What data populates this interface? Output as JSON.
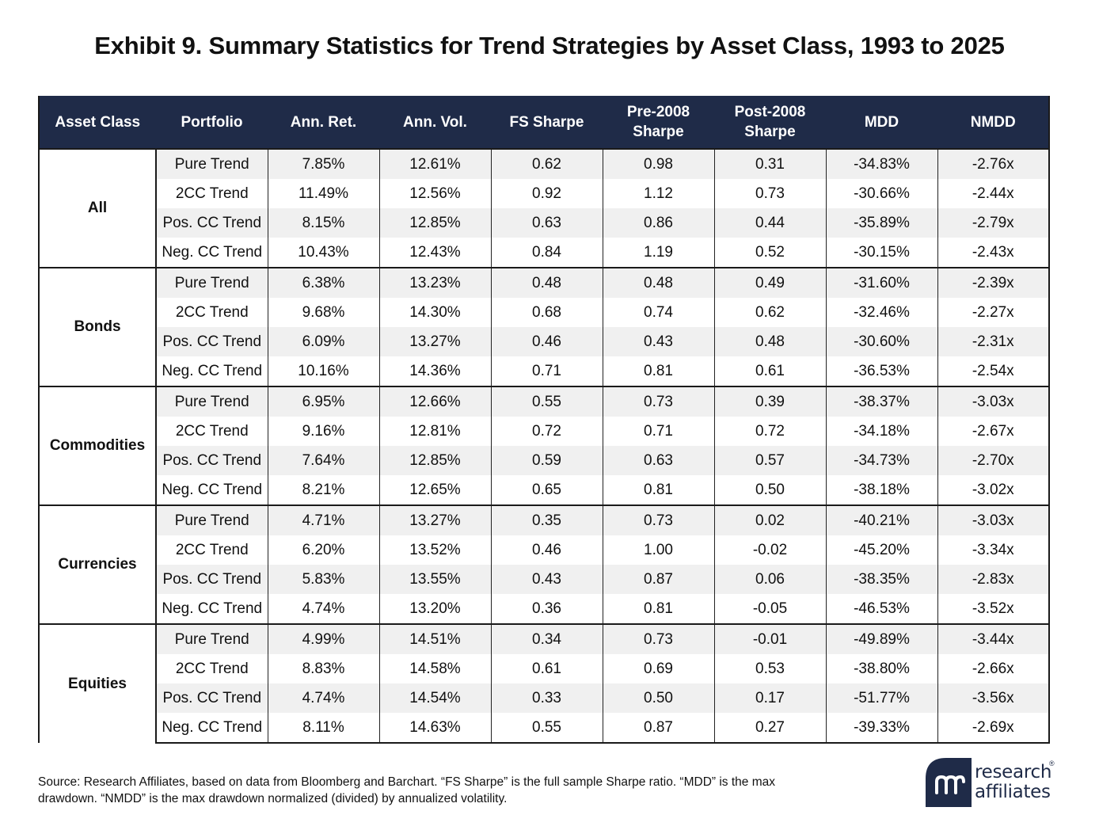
{
  "title": "Exhibit 9. Summary Statistics for Trend Strategies by Asset Class, 1993 to 2025",
  "headers": [
    "Asset Class",
    "Portfolio",
    "Ann. Ret.",
    "Ann. Vol.",
    "FS Sharpe",
    "Pre-2008 Sharpe",
    "Post-2008 Sharpe",
    "MDD",
    "NMDD"
  ],
  "groups": [
    {
      "asset": "All",
      "rows": [
        [
          "Pure Trend",
          "7.85%",
          "12.61%",
          "0.62",
          "0.98",
          "0.31",
          "-34.83%",
          "-2.76x"
        ],
        [
          "2CC Trend",
          "11.49%",
          "12.56%",
          "0.92",
          "1.12",
          "0.73",
          "-30.66%",
          "-2.44x"
        ],
        [
          "Pos. CC Trend",
          "8.15%",
          "12.85%",
          "0.63",
          "0.86",
          "0.44",
          "-35.89%",
          "-2.79x"
        ],
        [
          "Neg. CC Trend",
          "10.43%",
          "12.43%",
          "0.84",
          "1.19",
          "0.52",
          "-30.15%",
          "-2.43x"
        ]
      ]
    },
    {
      "asset": "Bonds",
      "rows": [
        [
          "Pure Trend",
          "6.38%",
          "13.23%",
          "0.48",
          "0.48",
          "0.49",
          "-31.60%",
          "-2.39x"
        ],
        [
          "2CC Trend",
          "9.68%",
          "14.30%",
          "0.68",
          "0.74",
          "0.62",
          "-32.46%",
          "-2.27x"
        ],
        [
          "Pos. CC Trend",
          "6.09%",
          "13.27%",
          "0.46",
          "0.43",
          "0.48",
          "-30.60%",
          "-2.31x"
        ],
        [
          "Neg. CC Trend",
          "10.16%",
          "14.36%",
          "0.71",
          "0.81",
          "0.61",
          "-36.53%",
          "-2.54x"
        ]
      ]
    },
    {
      "asset": "Commodities",
      "rows": [
        [
          "Pure Trend",
          "6.95%",
          "12.66%",
          "0.55",
          "0.73",
          "0.39",
          "-38.37%",
          "-3.03x"
        ],
        [
          "2CC Trend",
          "9.16%",
          "12.81%",
          "0.72",
          "0.71",
          "0.72",
          "-34.18%",
          "-2.67x"
        ],
        [
          "Pos. CC Trend",
          "7.64%",
          "12.85%",
          "0.59",
          "0.63",
          "0.57",
          "-34.73%",
          "-2.70x"
        ],
        [
          "Neg. CC Trend",
          "8.21%",
          "12.65%",
          "0.65",
          "0.81",
          "0.50",
          "-38.18%",
          "-3.02x"
        ]
      ]
    },
    {
      "asset": "Currencies",
      "rows": [
        [
          "Pure Trend",
          "4.71%",
          "13.27%",
          "0.35",
          "0.73",
          "0.02",
          "-40.21%",
          "-3.03x"
        ],
        [
          "2CC Trend",
          "6.20%",
          "13.52%",
          "0.46",
          "1.00",
          "-0.02",
          "-45.20%",
          "-3.34x"
        ],
        [
          "Pos. CC Trend",
          "5.83%",
          "13.55%",
          "0.43",
          "0.87",
          "0.06",
          "-38.35%",
          "-2.83x"
        ],
        [
          "Neg. CC Trend",
          "4.74%",
          "13.20%",
          "0.36",
          "0.81",
          "-0.05",
          "-46.53%",
          "-3.52x"
        ]
      ]
    },
    {
      "asset": "Equities",
      "rows": [
        [
          "Pure Trend",
          "4.99%",
          "14.51%",
          "0.34",
          "0.73",
          "-0.01",
          "-49.89%",
          "-3.44x"
        ],
        [
          "2CC Trend",
          "8.83%",
          "14.58%",
          "0.61",
          "0.69",
          "0.53",
          "-38.80%",
          "-2.66x"
        ],
        [
          "Pos. CC Trend",
          "4.74%",
          "14.54%",
          "0.33",
          "0.50",
          "0.17",
          "-51.77%",
          "-3.56x"
        ],
        [
          "Neg. CC Trend",
          "8.11%",
          "14.63%",
          "0.55",
          "0.87",
          "0.27",
          "-39.33%",
          "-2.69x"
        ]
      ]
    }
  ],
  "footnote": "Source: Research Affiliates, based on data from Bloomberg and Barchart. “FS Sharpe” is the full sample Sharpe ratio. “MDD” is the max drawdown. “NMDD” is the max drawdown normalized (divided) by annualized volatility.",
  "logo": {
    "line1": "research",
    "line2": "affiliates",
    "reg": "®"
  },
  "colors": {
    "header_bg": "#1f2b48",
    "row_shade": "#f0f0f0",
    "brand": "#1f2b48"
  }
}
